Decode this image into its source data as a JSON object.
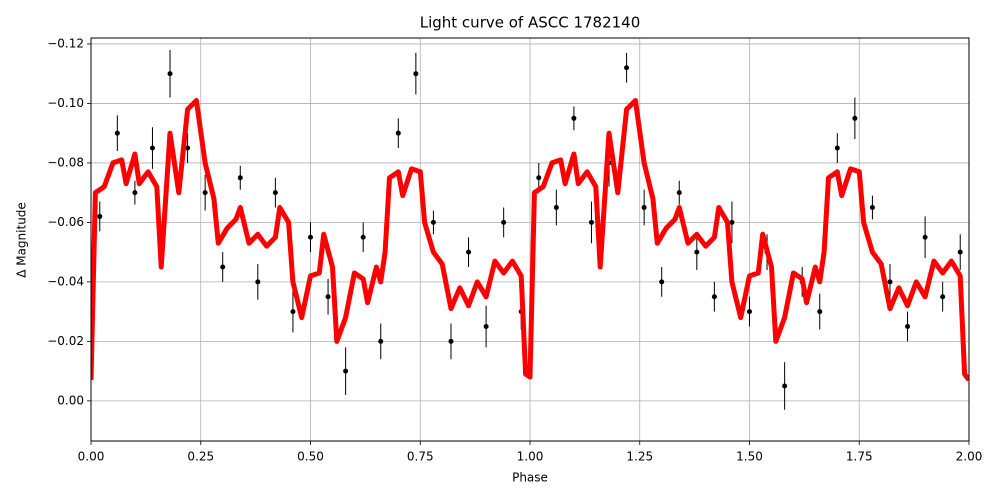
{
  "chart_data": {
    "type": "scatter",
    "title": "Light curve of ASCC 1782140",
    "xlabel": "Phase",
    "ylabel": "Δ Magnitude",
    "xlim": [
      0,
      2
    ],
    "ylim": [
      0.0135,
      -0.122
    ],
    "xticks": [
      {
        "value": 0,
        "label": "0.00"
      },
      {
        "value": 0.25,
        "label": "0.25"
      },
      {
        "value": 0.5,
        "label": "0.50"
      },
      {
        "value": 0.75,
        "label": "0.75"
      },
      {
        "value": 1,
        "label": "1.00"
      },
      {
        "value": 1.25,
        "label": "1.25"
      },
      {
        "value": 1.5,
        "label": "1.50"
      },
      {
        "value": 1.75,
        "label": "1.75"
      },
      {
        "value": 2,
        "label": "2.00"
      }
    ],
    "yticks": [
      {
        "value": 0,
        "label": "0.00"
      },
      {
        "value": -0.02,
        "label": "−0.02"
      },
      {
        "value": -0.04,
        "label": "−0.04"
      },
      {
        "value": -0.06,
        "label": "−0.06"
      },
      {
        "value": -0.08,
        "label": "−0.08"
      },
      {
        "value": -0.1,
        "label": "−0.10"
      },
      {
        "value": -0.12,
        "label": "−0.12"
      }
    ],
    "grid": true,
    "series": [
      {
        "type": "errorbar",
        "color": "#000000",
        "x": [
          0.02,
          0.06,
          0.1,
          0.14,
          0.18,
          0.22,
          0.26,
          0.3,
          0.34,
          0.38,
          0.42,
          0.46,
          0.5,
          0.54,
          0.58,
          0.62,
          0.66,
          0.7,
          0.74,
          0.78,
          0.82,
          0.86,
          0.9,
          0.94,
          0.98,
          1.02,
          1.06,
          1.1,
          1.14,
          1.18,
          1.22,
          1.26,
          1.3,
          1.34,
          1.38,
          1.42,
          1.46,
          1.5,
          1.54,
          1.58,
          1.62,
          1.66,
          1.7,
          1.74,
          1.78,
          1.82,
          1.86,
          1.9,
          1.94,
          1.98
        ],
        "values": [
          -0.062,
          -0.09,
          -0.07,
          -0.085,
          -0.11,
          -0.085,
          -0.07,
          -0.045,
          -0.075,
          -0.04,
          -0.07,
          -0.03,
          -0.055,
          -0.035,
          -0.01,
          -0.055,
          -0.02,
          -0.09,
          -0.11,
          -0.06,
          -0.02,
          -0.05,
          -0.025,
          -0.06,
          -0.03,
          -0.075,
          -0.065,
          -0.095,
          -0.06,
          -0.08,
          -0.112,
          -0.065,
          -0.04,
          -0.07,
          -0.05,
          -0.035,
          -0.06,
          -0.03,
          -0.05,
          -0.005,
          -0.04,
          -0.03,
          -0.085,
          -0.095,
          -0.065,
          -0.04,
          -0.025,
          -0.055,
          -0.035,
          -0.05
        ],
        "errors": [
          0.005,
          0.006,
          0.004,
          0.007,
          0.008,
          0.005,
          0.006,
          0.005,
          0.004,
          0.006,
          0.005,
          0.007,
          0.005,
          0.006,
          0.008,
          0.005,
          0.006,
          0.005,
          0.007,
          0.004,
          0.006,
          0.005,
          0.007,
          0.005,
          0.006,
          0.005,
          0.006,
          0.004,
          0.007,
          0.008,
          0.005,
          0.006,
          0.005,
          0.004,
          0.006,
          0.005,
          0.007,
          0.005,
          0.006,
          0.008,
          0.005,
          0.006,
          0.005,
          0.007,
          0.004,
          0.006,
          0.005,
          0.007,
          0.005,
          0.006
        ]
      },
      {
        "type": "line",
        "color": "#ff0000",
        "x": [
          0.0,
          0.01,
          0.03,
          0.05,
          0.07,
          0.08,
          0.1,
          0.11,
          0.13,
          0.15,
          0.16,
          0.18,
          0.2,
          0.22,
          0.24,
          0.26,
          0.28,
          0.29,
          0.31,
          0.33,
          0.34,
          0.36,
          0.38,
          0.4,
          0.42,
          0.43,
          0.45,
          0.46,
          0.48,
          0.5,
          0.52,
          0.53,
          0.55,
          0.56,
          0.58,
          0.6,
          0.62,
          0.63,
          0.65,
          0.66,
          0.67,
          0.68,
          0.7,
          0.71,
          0.73,
          0.75,
          0.76,
          0.78,
          0.8,
          0.82,
          0.84,
          0.86,
          0.88,
          0.9,
          0.92,
          0.94,
          0.96,
          0.98,
          0.99,
          1.0,
          1.01,
          1.03,
          1.05,
          1.07,
          1.08,
          1.1,
          1.11,
          1.13,
          1.15,
          1.16,
          1.18,
          1.2,
          1.22,
          1.24,
          1.26,
          1.28,
          1.29,
          1.31,
          1.33,
          1.34,
          1.36,
          1.38,
          1.4,
          1.42,
          1.43,
          1.45,
          1.46,
          1.48,
          1.5,
          1.52,
          1.53,
          1.55,
          1.56,
          1.58,
          1.6,
          1.62,
          1.63,
          1.65,
          1.66,
          1.67,
          1.68,
          1.7,
          1.71,
          1.73,
          1.75,
          1.76,
          1.78,
          1.8,
          1.82,
          1.84,
          1.86,
          1.88,
          1.9,
          1.92,
          1.94,
          1.96,
          1.98,
          1.99,
          2.0
        ],
        "values": [
          -0.007,
          -0.07,
          -0.072,
          -0.08,
          -0.081,
          -0.073,
          -0.083,
          -0.073,
          -0.077,
          -0.072,
          -0.045,
          -0.09,
          -0.07,
          -0.098,
          -0.101,
          -0.08,
          -0.068,
          -0.053,
          -0.058,
          -0.061,
          -0.065,
          -0.053,
          -0.056,
          -0.052,
          -0.055,
          -0.065,
          -0.06,
          -0.04,
          -0.028,
          -0.042,
          -0.043,
          -0.056,
          -0.045,
          -0.02,
          -0.028,
          -0.043,
          -0.041,
          -0.033,
          -0.045,
          -0.04,
          -0.05,
          -0.075,
          -0.077,
          -0.069,
          -0.078,
          -0.077,
          -0.06,
          -0.05,
          -0.046,
          -0.031,
          -0.038,
          -0.032,
          -0.04,
          -0.035,
          -0.047,
          -0.043,
          -0.047,
          -0.042,
          -0.009,
          -0.008,
          -0.07,
          -0.072,
          -0.08,
          -0.081,
          -0.073,
          -0.083,
          -0.073,
          -0.077,
          -0.072,
          -0.045,
          -0.09,
          -0.07,
          -0.098,
          -0.101,
          -0.08,
          -0.068,
          -0.053,
          -0.058,
          -0.061,
          -0.065,
          -0.053,
          -0.056,
          -0.052,
          -0.055,
          -0.065,
          -0.06,
          -0.04,
          -0.028,
          -0.042,
          -0.043,
          -0.056,
          -0.045,
          -0.02,
          -0.028,
          -0.043,
          -0.041,
          -0.033,
          -0.045,
          -0.04,
          -0.05,
          -0.075,
          -0.077,
          -0.069,
          -0.078,
          -0.077,
          -0.06,
          -0.05,
          -0.046,
          -0.031,
          -0.038,
          -0.032,
          -0.04,
          -0.035,
          -0.047,
          -0.043,
          -0.047,
          -0.042,
          -0.009,
          -0.007
        ]
      }
    ]
  }
}
